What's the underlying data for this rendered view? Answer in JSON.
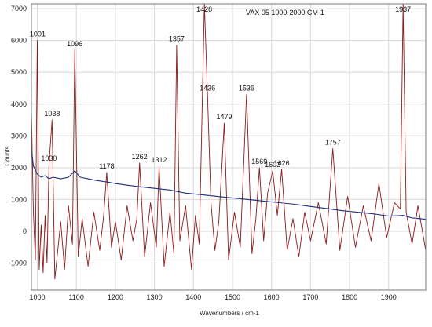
{
  "chart_data": {
    "type": "line",
    "title": "VAX 05 1000-2000 CM-1",
    "xlabel": "Wavenumbers / cm-1",
    "ylabel": "Counts",
    "xlim": [
      985,
      1995
    ],
    "ylim": [
      -1850,
      7150
    ],
    "x_ticks": [
      1000,
      1100,
      1200,
      1300,
      1400,
      1500,
      1600,
      1700,
      1800,
      1900
    ],
    "y_ticks": [
      -1000,
      0,
      1000,
      2000,
      3000,
      4000,
      5000,
      6000,
      7000
    ],
    "grid": true,
    "series": [
      {
        "color": "#8b1a1a",
        "x": [
          985,
          990,
          995,
          1000,
          1005,
          1010,
          1015,
          1020,
          1025,
          1030,
          1038,
          1045,
          1050,
          1060,
          1070,
          1080,
          1090,
          1096,
          1105,
          1115,
          1130,
          1145,
          1160,
          1170,
          1178,
          1190,
          1200,
          1215,
          1230,
          1245,
          1255,
          1262,
          1275,
          1290,
          1305,
          1312,
          1325,
          1340,
          1350,
          1357,
          1365,
          1380,
          1395,
          1405,
          1415,
          1428,
          1436,
          1445,
          1455,
          1465,
          1479,
          1490,
          1505,
          1520,
          1536,
          1550,
          1560,
          1569,
          1580,
          1590,
          1603,
          1615,
          1626,
          1640,
          1655,
          1670,
          1685,
          1700,
          1720,
          1740,
          1757,
          1775,
          1795,
          1815,
          1835,
          1855,
          1875,
          1895,
          1915,
          1930,
          1937,
          1945,
          1960,
          1975,
          1995
        ],
        "y": [
          3800,
          600,
          -900,
          6000,
          -1200,
          200,
          -1300,
          500,
          -1000,
          2100,
          3500,
          -1500,
          -900,
          300,
          -1200,
          800,
          -400,
          5700,
          -800,
          400,
          -1100,
          600,
          -600,
          500,
          1850,
          -500,
          300,
          -900,
          800,
          -300,
          400,
          2150,
          -800,
          900,
          -500,
          2050,
          -1100,
          600,
          -700,
          5850,
          -300,
          800,
          -1200,
          500,
          -400,
          7150,
          4300,
          900,
          -600,
          300,
          3400,
          -900,
          600,
          -500,
          4300,
          -700,
          400,
          2000,
          -300,
          1200,
          1900,
          500,
          1950,
          -600,
          400,
          -800,
          600,
          -300,
          900,
          -400,
          2600,
          -600,
          1100,
          -500,
          800,
          -300,
          1500,
          -200,
          900,
          700,
          7150,
          600,
          -400,
          800,
          -600
        ]
      },
      {
        "color": "#1f2f7a",
        "x": [
          985,
          990,
          1000,
          1010,
          1020,
          1030,
          1040,
          1060,
          1080,
          1096,
          1110,
          1130,
          1150,
          1178,
          1200,
          1230,
          1262,
          1300,
          1340,
          1380,
          1420,
          1460,
          1500,
          1540,
          1580,
          1620,
          1660,
          1700,
          1740,
          1780,
          1820,
          1860,
          1900,
          1937,
          1960,
          1995
        ],
        "y": [
          2600,
          2050,
          1800,
          1700,
          1750,
          1650,
          1700,
          1650,
          1700,
          1900,
          1700,
          1650,
          1600,
          1550,
          1500,
          1450,
          1400,
          1350,
          1300,
          1200,
          1150,
          1100,
          1050,
          1000,
          950,
          900,
          850,
          780,
          720,
          650,
          600,
          550,
          480,
          500,
          420,
          380
        ]
      }
    ],
    "annotations": [
      {
        "label": "1001",
        "x": 1001,
        "y": 6000
      },
      {
        "label": "1038",
        "x": 1038,
        "y": 3500
      },
      {
        "label": "1030",
        "x": 1030,
        "y": 2100
      },
      {
        "label": "1096",
        "x": 1096,
        "y": 5700
      },
      {
        "label": "1178",
        "x": 1178,
        "y": 1850
      },
      {
        "label": "1262",
        "x": 1262,
        "y": 2150
      },
      {
        "label": "1312",
        "x": 1312,
        "y": 2050
      },
      {
        "label": "1357",
        "x": 1357,
        "y": 5850
      },
      {
        "label": "1428",
        "x": 1428,
        "y": 7150
      },
      {
        "label": "1436",
        "x": 1436,
        "y": 4300
      },
      {
        "label": "1479",
        "x": 1479,
        "y": 3400
      },
      {
        "label": "1536",
        "x": 1536,
        "y": 4300
      },
      {
        "label": "1569",
        "x": 1569,
        "y": 2000
      },
      {
        "label": "1603",
        "x": 1603,
        "y": 1900
      },
      {
        "label": "1626",
        "x": 1626,
        "y": 1950
      },
      {
        "label": "1757",
        "x": 1757,
        "y": 2600
      },
      {
        "label": "1937",
        "x": 1937,
        "y": 7150
      }
    ]
  }
}
